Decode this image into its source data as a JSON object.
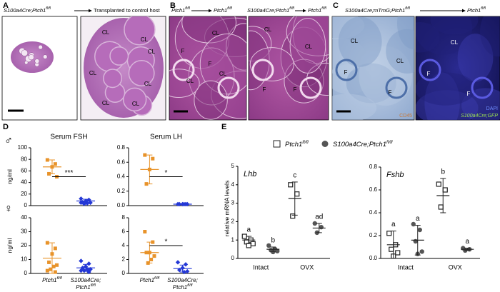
{
  "panels": [
    {
      "label": "A",
      "headers": [
        {
          "from": {
            "text": "S100a4Cre;Ptch1",
            "sup": "fl/fl"
          },
          "to": "Transplanted to control host"
        }
      ],
      "images": [
        {
          "labels": []
        },
        {
          "labels": [
            "CL",
            "CL",
            "CL",
            "CL",
            "CL",
            "CL",
            "CL"
          ]
        }
      ]
    },
    {
      "label": "B",
      "headers": [
        {
          "from": {
            "text": "Ptch1",
            "sup": "fl/fl"
          },
          "to": {
            "text": "Ptch1",
            "sup": "fl/fl"
          }
        },
        {
          "from": {
            "text": "S100a4Cre;Ptch1",
            "sup": "fl/fl"
          },
          "to": {
            "text": "Ptch1",
            "sup": "fl/fl"
          }
        }
      ],
      "images": [
        {
          "labels": [
            "CL",
            "F",
            "F",
            "CL",
            "CL"
          ]
        },
        {
          "labels": [
            "CL",
            "CL",
            "F",
            "F"
          ]
        }
      ]
    },
    {
      "label": "C",
      "headers": [
        {
          "from": {
            "text": "S100a4Cre;mTmG;Ptch1",
            "sup": "fl/fl"
          },
          "to": {
            "text": "Ptch1",
            "sup": "fl/fl"
          }
        }
      ],
      "images": [
        {
          "labels": [
            "CL",
            "F",
            "CL",
            "F",
            "CD45"
          ]
        },
        {
          "labels": [
            "CL",
            "F",
            "F",
            "DAPI",
            "S100a4Cre;GFP"
          ]
        }
      ]
    }
  ],
  "chart_data": [
    {
      "type": "scatter",
      "panel_label": "D",
      "sex": "♂",
      "title": "Serum FSH",
      "y_label": "ng/ml",
      "ylim": [
        0,
        100
      ],
      "yticks": [
        0,
        20,
        40,
        60,
        80,
        100
      ],
      "significance": "***",
      "groups": [
        {
          "color": "#e8932a",
          "marker": "square",
          "values": [
            79,
            72,
            67,
            55,
            50
          ],
          "mean": 67,
          "sd": 12
        },
        {
          "color": "#2438d6",
          "marker": "diamond",
          "values": [
            12,
            10,
            8,
            6,
            5,
            4,
            3,
            5
          ],
          "mean": 8,
          "sd": 3
        }
      ]
    },
    {
      "type": "scatter",
      "title": "Serum LH",
      "ylim": [
        0,
        0.8
      ],
      "yticks": [
        {
          "value": 0,
          "label": "0.0"
        },
        0.2,
        0.4,
        0.6,
        0.8
      ],
      "significance": "*",
      "groups": [
        {
          "color": "#e8932a",
          "marker": "square",
          "values": [
            0.7,
            0.65,
            0.5,
            0.3
          ],
          "mean": 0.5,
          "sd": 0.2
        },
        {
          "color": "#2438d6",
          "marker": "diamond",
          "values": [
            0.02,
            0.02,
            0.02,
            0.02,
            0.02,
            0.02
          ],
          "mean": 0.02,
          "sd": 0.005
        }
      ]
    },
    {
      "type": "scatter",
      "sex": "♀",
      "y_label": "ng/ml",
      "ylim": [
        0,
        40
      ],
      "yticks": [
        0,
        10,
        20,
        30,
        40
      ],
      "categories": [
        {
          "text": "Ptch1",
          "sup": "fl/fl"
        },
        {
          "text": "S100a4Cre;",
          "text2": "Ptch1",
          "sup": "fl/fl"
        }
      ],
      "groups": [
        {
          "color": "#e8932a",
          "marker": "square",
          "values": [
            22,
            18,
            14,
            8,
            6,
            5,
            3,
            2,
            1
          ],
          "mean": 11,
          "sd": 11
        },
        {
          "color": "#2438d6",
          "marker": "diamond",
          "values": [
            9,
            7,
            5,
            4,
            3,
            3,
            2,
            2,
            1
          ],
          "mean": 4,
          "sd": 2.5
        }
      ]
    },
    {
      "type": "scatter",
      "ylim": [
        0,
        8
      ],
      "yticks": [
        0,
        2,
        4,
        6,
        8
      ],
      "significance": "*",
      "categories": [
        {
          "text": "Ptch1",
          "sup": "fl/fl"
        },
        {
          "text": "S100a4Cre;",
          "text2": "Ptch1",
          "sup": "fl/fl"
        }
      ],
      "groups": [
        {
          "color": "#e8932a",
          "marker": "square",
          "values": [
            6,
            4.5,
            3,
            3,
            2.5,
            2,
            1.5
          ],
          "mean": 3,
          "sd": 1.5
        },
        {
          "color": "#2438d6",
          "marker": "diamond",
          "values": [
            1.6,
            1.3,
            0.8,
            0.5,
            0.3,
            0.2
          ],
          "mean": 0.7,
          "sd": 0.5
        }
      ]
    },
    {
      "type": "grouped-scatter",
      "panel_label": "E",
      "title": "Lhb",
      "y_label": "relative mRNA levels",
      "ylim": [
        0,
        5
      ],
      "yticks": [
        0,
        1,
        2,
        3,
        4,
        5
      ],
      "categories": [
        "Intact",
        "OVX"
      ],
      "series": [
        {
          "name": {
            "text": "Ptch1",
            "sup": "fl/fl"
          },
          "color": "#222222",
          "marker": "open-square",
          "values": [
            [
              1.2,
              1.0,
              0.9,
              0.8,
              0.7
            ],
            [
              4.0,
              3.5,
              2.3
            ]
          ],
          "mean": [
            1.0,
            3.25
          ],
          "sd": [
            0.2,
            0.9
          ],
          "letters": [
            "a",
            "c"
          ]
        },
        {
          "name": {
            "text": "S100a4Cre;Ptch1",
            "sup": "fl/fl"
          },
          "color": "#555555",
          "marker": "circle",
          "values": [
            [
              0.7,
              0.5,
              0.45,
              0.4,
              0.35
            ],
            [
              1.9,
              1.7,
              1.4
            ]
          ],
          "mean": [
            0.5,
            1.65
          ],
          "sd": [
            0.12,
            0.25
          ],
          "letters": [
            "b",
            "ad"
          ]
        }
      ]
    },
    {
      "type": "grouped-scatter",
      "title": "Fshb",
      "ylim": [
        0,
        0.8
      ],
      "yticks": [
        {
          "value": 0,
          "label": "0.0"
        },
        0.2,
        0.4,
        0.6,
        0.8
      ],
      "categories": [
        "Intact",
        "OVX"
      ],
      "series": [
        {
          "color": "#222222",
          "marker": "open-square",
          "values": [
            [
              0.22,
              0.12,
              0.08,
              0.05,
              0.02
            ],
            [
              0.65,
              0.6,
              0.45
            ]
          ],
          "mean": [
            0.12,
            0.55
          ],
          "sd": [
            0.12,
            0.15
          ],
          "letters": [
            "a",
            "b"
          ]
        },
        {
          "color": "#555555",
          "marker": "circle",
          "values": [
            [
              0.3,
              0.25,
              0.15,
              0.06,
              0.04
            ],
            [
              0.09,
              0.08,
              0.07
            ]
          ],
          "mean": [
            0.16,
            0.08
          ],
          "sd": [
            0.13,
            0.01
          ],
          "letters": [
            "a",
            "a"
          ]
        }
      ]
    }
  ]
}
